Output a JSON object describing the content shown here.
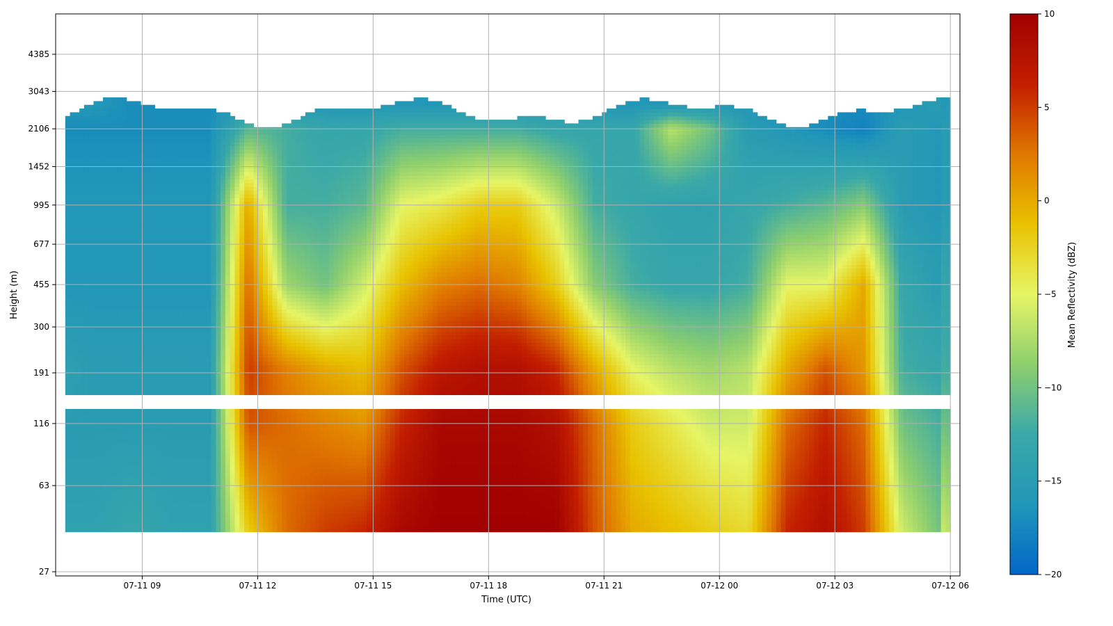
{
  "chart_data": {
    "type": "heatmap",
    "xlabel": "Time (UTC)",
    "ylabel": "Height (m)",
    "colorbar": {
      "label": "Mean Reflectivity (dBZ)",
      "range": [
        -20,
        10
      ],
      "ticks": [
        10,
        5,
        0,
        -5,
        -10,
        -15,
        -20
      ],
      "colormap": [
        "#0067c8",
        "#2196b8",
        "#3aa8a8",
        "#8ecf6e",
        "#e6f566",
        "#e8c200",
        "#e07800",
        "#c21e00",
        "#a00000"
      ]
    },
    "x_ticks": [
      "07-11 09",
      "07-11 12",
      "07-11 15",
      "07-11 18",
      "07-11 21",
      "07-12 00",
      "07-12 03",
      "07-12 06"
    ],
    "x_range": [
      "07-11 06:45",
      "07-12 06:15"
    ],
    "y_scale": "log",
    "y_ticks": [
      27,
      63,
      116,
      191,
      300,
      455,
      677,
      995,
      1452,
      2106,
      3043,
      4385
    ],
    "grid": true,
    "value_field_description": "",
    "series": [
      {
        "height_m": 40,
        "reflectivity_dBZ_by_hour": [
          -14,
          -14,
          -13,
          -14,
          -14,
          -2,
          3,
          5,
          6,
          9,
          10,
          10,
          10,
          10,
          4,
          0,
          -1,
          -2,
          -3,
          6,
          8,
          5,
          -6,
          -10
        ]
      },
      {
        "height_m": 116,
        "reflectivity_dBZ_by_hour": [
          -15,
          -15,
          -15,
          -15,
          -15,
          4,
          3,
          2,
          1,
          6,
          9,
          9,
          9,
          8,
          3,
          -2,
          -4,
          -6,
          -6,
          3,
          6,
          3,
          -10,
          -12
        ]
      },
      {
        "height_m": 200,
        "reflectivity_dBZ_by_hour": [
          -14,
          -15,
          -15,
          -15,
          -15,
          5,
          2,
          0,
          -1,
          4,
          7,
          8,
          8,
          6,
          0,
          -5,
          -7,
          -8,
          -7,
          0,
          4,
          1,
          -12,
          -13
        ]
      },
      {
        "height_m": 455,
        "reflectivity_dBZ_by_hour": [
          -16,
          -16,
          -16,
          -16,
          -16,
          3,
          -8,
          -10,
          -6,
          -1,
          2,
          3,
          2,
          -2,
          -9,
          -12,
          -13,
          -13,
          -12,
          -5,
          -5,
          0,
          -13,
          -15
        ]
      },
      {
        "height_m": 995,
        "reflectivity_dBZ_by_hour": [
          -16,
          -16,
          -16,
          -16,
          -16,
          0,
          -12,
          -12,
          -11,
          -5,
          -4,
          -2,
          -2,
          -6,
          -12,
          -13,
          -14,
          -14,
          -13,
          -12,
          -11,
          -9,
          -15,
          -16
        ]
      },
      {
        "height_m": 2106,
        "reflectivity_dBZ_by_hour": [
          -17,
          -17,
          -17,
          -17,
          -17,
          -11,
          -12,
          -13,
          -13,
          -12,
          -12,
          -12,
          -12,
          -13,
          -13,
          -13,
          -7,
          -10,
          -15,
          -16,
          -17,
          -18,
          -15,
          -16
        ]
      },
      {
        "height_m": 2700,
        "reflectivity_dBZ_by_hour": [
          -16,
          -16,
          -17,
          -17,
          -17,
          -16,
          -16,
          -16,
          -16,
          -16,
          -16,
          -16,
          -16,
          -16,
          -16,
          -16,
          -16,
          -16,
          -16,
          -17,
          -17,
          -17,
          -16,
          -15
        ]
      }
    ]
  }
}
